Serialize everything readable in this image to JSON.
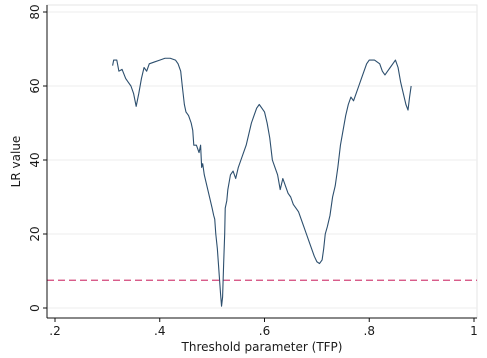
{
  "chart_data": {
    "type": "line",
    "xlabel": "Threshold parameter (TFP)",
    "ylabel": "LR value",
    "xlim": [
      0.2,
      1.0
    ],
    "ylim": [
      0,
      80
    ],
    "x_ticks": [
      {
        "value": 0.2,
        "label": ".2"
      },
      {
        "value": 0.4,
        "label": ".4"
      },
      {
        "value": 0.6,
        "label": ".6"
      },
      {
        "value": 0.8,
        "label": ".8"
      },
      {
        "value": 1.0,
        "label": "1"
      }
    ],
    "y_ticks": [
      {
        "value": 0,
        "label": "0"
      },
      {
        "value": 20,
        "label": "20"
      },
      {
        "value": 40,
        "label": "40"
      },
      {
        "value": 60,
        "label": "60"
      },
      {
        "value": 80,
        "label": "80"
      }
    ],
    "grid": "horizontal",
    "reference_line": {
      "y": 7.5,
      "style": "dashed",
      "color": "#d2457a"
    },
    "series": [
      {
        "color": "#2d4f6e",
        "points": [
          [
            0.31,
            65.5
          ],
          [
            0.312,
            67
          ],
          [
            0.318,
            67
          ],
          [
            0.322,
            64
          ],
          [
            0.328,
            64.5
          ],
          [
            0.335,
            62
          ],
          [
            0.34,
            61
          ],
          [
            0.345,
            60
          ],
          [
            0.35,
            58
          ],
          [
            0.355,
            54.5
          ],
          [
            0.36,
            58
          ],
          [
            0.365,
            62
          ],
          [
            0.37,
            65
          ],
          [
            0.375,
            64
          ],
          [
            0.38,
            66
          ],
          [
            0.39,
            66.5
          ],
          [
            0.4,
            67
          ],
          [
            0.41,
            67.5
          ],
          [
            0.42,
            67.5
          ],
          [
            0.43,
            67
          ],
          [
            0.435,
            66
          ],
          [
            0.44,
            64
          ],
          [
            0.443,
            60
          ],
          [
            0.447,
            55
          ],
          [
            0.45,
            53
          ],
          [
            0.455,
            52
          ],
          [
            0.46,
            50
          ],
          [
            0.463,
            48
          ],
          [
            0.465,
            44
          ],
          [
            0.47,
            44
          ],
          [
            0.475,
            42
          ],
          [
            0.478,
            44
          ],
          [
            0.48,
            38
          ],
          [
            0.482,
            39
          ],
          [
            0.485,
            36
          ],
          [
            0.49,
            33
          ],
          [
            0.495,
            30
          ],
          [
            0.5,
            27
          ],
          [
            0.503,
            25
          ],
          [
            0.505,
            24
          ],
          [
            0.507,
            20
          ],
          [
            0.51,
            16
          ],
          [
            0.512,
            12
          ],
          [
            0.514,
            8
          ],
          [
            0.516,
            4
          ],
          [
            0.518,
            0.5
          ],
          [
            0.52,
            3
          ],
          [
            0.522,
            12
          ],
          [
            0.524,
            20
          ],
          [
            0.525,
            27
          ],
          [
            0.528,
            29
          ],
          [
            0.53,
            32
          ],
          [
            0.535,
            36
          ],
          [
            0.54,
            37
          ],
          [
            0.545,
            35
          ],
          [
            0.55,
            38
          ],
          [
            0.555,
            40
          ],
          [
            0.56,
            42
          ],
          [
            0.565,
            44
          ],
          [
            0.57,
            47
          ],
          [
            0.575,
            50
          ],
          [
            0.58,
            52
          ],
          [
            0.585,
            54
          ],
          [
            0.59,
            55
          ],
          [
            0.595,
            54
          ],
          [
            0.6,
            53
          ],
          [
            0.605,
            50
          ],
          [
            0.61,
            46
          ],
          [
            0.615,
            40
          ],
          [
            0.62,
            38
          ],
          [
            0.625,
            36
          ],
          [
            0.63,
            32
          ],
          [
            0.635,
            35
          ],
          [
            0.64,
            33
          ],
          [
            0.645,
            31
          ],
          [
            0.65,
            30
          ],
          [
            0.655,
            28
          ],
          [
            0.66,
            27
          ],
          [
            0.665,
            26
          ],
          [
            0.67,
            24
          ],
          [
            0.675,
            22
          ],
          [
            0.68,
            20
          ],
          [
            0.685,
            18
          ],
          [
            0.69,
            16
          ],
          [
            0.695,
            14
          ],
          [
            0.7,
            12.5
          ],
          [
            0.705,
            12
          ],
          [
            0.71,
            13
          ],
          [
            0.713,
            16
          ],
          [
            0.716,
            20
          ],
          [
            0.72,
            22
          ],
          [
            0.725,
            25
          ],
          [
            0.73,
            30
          ],
          [
            0.735,
            33
          ],
          [
            0.74,
            38
          ],
          [
            0.745,
            44
          ],
          [
            0.75,
            48
          ],
          [
            0.755,
            52
          ],
          [
            0.76,
            55
          ],
          [
            0.765,
            57
          ],
          [
            0.77,
            56
          ],
          [
            0.775,
            58
          ],
          [
            0.78,
            60
          ],
          [
            0.785,
            62
          ],
          [
            0.79,
            64
          ],
          [
            0.795,
            66
          ],
          [
            0.8,
            67
          ],
          [
            0.81,
            67
          ],
          [
            0.82,
            66
          ],
          [
            0.825,
            64
          ],
          [
            0.83,
            63
          ],
          [
            0.835,
            64
          ],
          [
            0.84,
            65
          ],
          [
            0.845,
            66
          ],
          [
            0.85,
            67
          ],
          [
            0.855,
            65
          ],
          [
            0.86,
            61
          ],
          [
            0.865,
            58
          ],
          [
            0.87,
            55
          ],
          [
            0.874,
            53.5
          ],
          [
            0.877,
            57
          ],
          [
            0.88,
            60
          ]
        ]
      }
    ]
  }
}
